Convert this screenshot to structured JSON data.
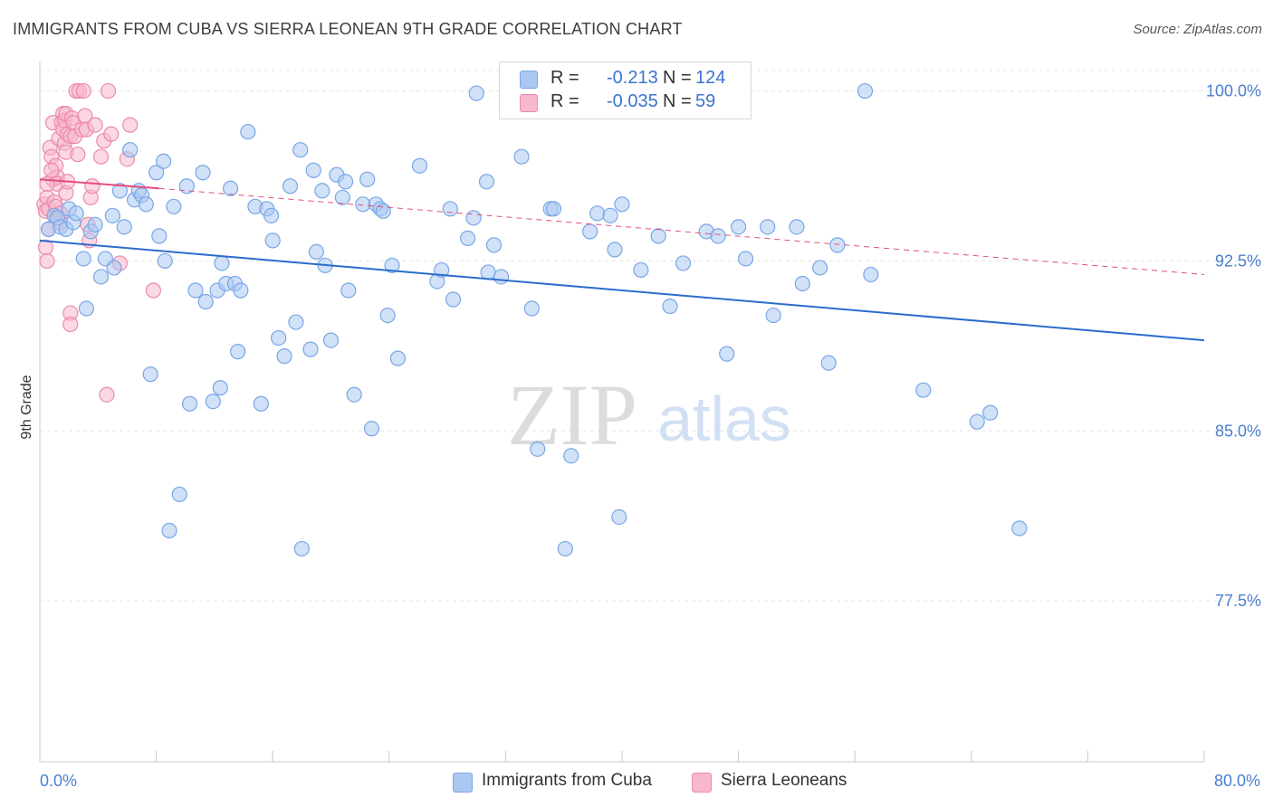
{
  "title": "IMMIGRANTS FROM CUBA VS SIERRA LEONEAN 9TH GRADE CORRELATION CHART",
  "source": "Source: ZipAtlas.com",
  "watermark": {
    "zip": "ZIP",
    "atlas": "atlas"
  },
  "colors": {
    "blue_fill": "#aac8f2",
    "blue_stroke": "#7aa6e4",
    "blue_line": "#2a6ccc",
    "pink_fill": "#f7b8cc",
    "pink_stroke": "#ec8aaa",
    "pink_line": "#e0507e",
    "tick_text": "#4a7fd0",
    "grid": "#e4e4e4"
  },
  "legend_top": {
    "rows": [
      {
        "r_label": "R =",
        "r_value": "-0.213",
        "n_label": "N =",
        "n_value": "124",
        "color": "#aac8f2"
      },
      {
        "r_label": "R =",
        "r_value": "-0.035",
        "n_label": "N =",
        "n_value": "59",
        "color": "#f7b8cc"
      }
    ]
  },
  "legend_bottom": [
    {
      "label": "Immigrants from Cuba",
      "color": "#aac8f2"
    },
    {
      "label": "Sierra Leoneans",
      "color": "#f7b8cc"
    }
  ],
  "chart_data": {
    "type": "scatter",
    "title": "IMMIGRANTS FROM CUBA VS SIERRA LEONEAN 9TH GRADE CORRELATION CHART",
    "xlabel": "",
    "ylabel": "9th Grade",
    "xlim": [
      0,
      80
    ],
    "ylim": [
      70.4,
      101.3
    ],
    "x_tick_labels": [
      "0.0%",
      "80.0%"
    ],
    "y_ticks": [
      {
        "value": 100.0,
        "label": "100.0%"
      },
      {
        "value": 92.5,
        "label": "92.5%"
      },
      {
        "value": 85.0,
        "label": "85.0%"
      },
      {
        "value": 77.5,
        "label": "77.5%"
      }
    ],
    "grid": true,
    "legend_placement": "bottom",
    "series": [
      {
        "name": "Immigrants from Cuba",
        "r": -0.213,
        "n": 124,
        "trend": {
          "x": [
            0,
            80
          ],
          "y": [
            93.4,
            89.0
          ]
        },
        "points": [
          [
            0.6,
            93.9
          ],
          [
            1.0,
            94.5
          ],
          [
            1.2,
            94.4
          ],
          [
            1.4,
            94.0
          ],
          [
            1.8,
            93.9
          ],
          [
            2.0,
            94.8
          ],
          [
            2.3,
            94.2
          ],
          [
            2.5,
            94.6
          ],
          [
            3.0,
            92.6
          ],
          [
            3.2,
            90.4
          ],
          [
            3.5,
            93.8
          ],
          [
            3.8,
            94.1
          ],
          [
            4.2,
            91.8
          ],
          [
            4.5,
            92.6
          ],
          [
            5.0,
            94.5
          ],
          [
            5.1,
            92.2
          ],
          [
            5.5,
            95.6
          ],
          [
            5.8,
            94.0
          ],
          [
            6.2,
            97.4
          ],
          [
            6.5,
            95.2
          ],
          [
            6.8,
            95.6
          ],
          [
            7.0,
            95.4
          ],
          [
            7.3,
            95.0
          ],
          [
            7.6,
            87.5
          ],
          [
            8.0,
            96.4
          ],
          [
            8.2,
            93.6
          ],
          [
            8.5,
            96.9
          ],
          [
            8.6,
            92.5
          ],
          [
            8.9,
            80.6
          ],
          [
            9.2,
            94.9
          ],
          [
            9.6,
            82.2
          ],
          [
            10.1,
            95.8
          ],
          [
            10.3,
            86.2
          ],
          [
            10.7,
            91.2
          ],
          [
            11.2,
            96.4
          ],
          [
            11.4,
            90.7
          ],
          [
            11.9,
            86.3
          ],
          [
            12.2,
            91.2
          ],
          [
            12.4,
            86.9
          ],
          [
            12.5,
            92.4
          ],
          [
            12.8,
            91.5
          ],
          [
            13.1,
            95.7
          ],
          [
            13.4,
            91.5
          ],
          [
            13.6,
            88.5
          ],
          [
            13.8,
            91.2
          ],
          [
            14.3,
            98.2
          ],
          [
            14.8,
            94.9
          ],
          [
            15.2,
            86.2
          ],
          [
            15.6,
            94.8
          ],
          [
            15.9,
            94.5
          ],
          [
            16.0,
            93.4
          ],
          [
            16.4,
            89.1
          ],
          [
            16.8,
            88.3
          ],
          [
            17.2,
            95.8
          ],
          [
            17.6,
            89.8
          ],
          [
            17.9,
            97.4
          ],
          [
            18.0,
            79.8
          ],
          [
            18.6,
            88.6
          ],
          [
            18.8,
            96.5
          ],
          [
            19.0,
            92.9
          ],
          [
            19.4,
            95.6
          ],
          [
            19.6,
            92.3
          ],
          [
            20.0,
            89.0
          ],
          [
            20.4,
            96.3
          ],
          [
            20.8,
            95.3
          ],
          [
            21.0,
            96.0
          ],
          [
            21.2,
            91.2
          ],
          [
            21.6,
            86.6
          ],
          [
            22.2,
            95.0
          ],
          [
            22.5,
            96.1
          ],
          [
            22.8,
            85.1
          ],
          [
            23.1,
            95.0
          ],
          [
            23.4,
            94.8
          ],
          [
            23.6,
            94.7
          ],
          [
            23.9,
            90.1
          ],
          [
            24.2,
            92.3
          ],
          [
            24.6,
            88.2
          ],
          [
            26.1,
            96.7
          ],
          [
            27.3,
            91.6
          ],
          [
            27.6,
            92.1
          ],
          [
            28.2,
            94.8
          ],
          [
            28.4,
            90.8
          ],
          [
            29.4,
            93.5
          ],
          [
            29.8,
            94.4
          ],
          [
            30.0,
            99.9
          ],
          [
            30.7,
            96.0
          ],
          [
            30.8,
            92.0
          ],
          [
            31.2,
            93.2
          ],
          [
            31.7,
            91.8
          ],
          [
            33.1,
            97.1
          ],
          [
            33.8,
            90.4
          ],
          [
            34.2,
            84.2
          ],
          [
            35.1,
            94.8
          ],
          [
            35.3,
            94.8
          ],
          [
            36.1,
            79.8
          ],
          [
            36.5,
            83.9
          ],
          [
            37.8,
            93.8
          ],
          [
            38.3,
            94.6
          ],
          [
            39.2,
            94.5
          ],
          [
            39.5,
            93.0
          ],
          [
            39.8,
            81.2
          ],
          [
            40.0,
            95.0
          ],
          [
            41.3,
            92.1
          ],
          [
            42.5,
            93.6
          ],
          [
            43.3,
            90.5
          ],
          [
            44.2,
            92.4
          ],
          [
            45.8,
            93.8
          ],
          [
            46.6,
            93.6
          ],
          [
            47.2,
            88.4
          ],
          [
            48.0,
            94.0
          ],
          [
            48.5,
            92.6
          ],
          [
            50.0,
            94.0
          ],
          [
            50.4,
            90.1
          ],
          [
            52.0,
            94.0
          ],
          [
            52.4,
            91.5
          ],
          [
            53.6,
            92.2
          ],
          [
            54.2,
            88.0
          ],
          [
            54.8,
            93.2
          ],
          [
            56.7,
            100.0
          ],
          [
            57.1,
            91.9
          ],
          [
            60.7,
            86.8
          ],
          [
            64.4,
            85.4
          ],
          [
            65.3,
            85.8
          ],
          [
            67.3,
            80.7
          ]
        ]
      },
      {
        "name": "Sierra Leoneans",
        "r": -0.035,
        "n": 59,
        "trend": {
          "x": [
            0,
            8.2
          ],
          "y": [
            96.1,
            95.7
          ]
        },
        "trend_dashed": {
          "x": [
            8.2,
            80
          ],
          "y": [
            95.7,
            91.9
          ]
        },
        "points": [
          [
            0.3,
            95.0
          ],
          [
            0.4,
            94.7
          ],
          [
            0.4,
            93.1
          ],
          [
            0.5,
            95.3
          ],
          [
            0.5,
            92.5
          ],
          [
            0.6,
            93.9
          ],
          [
            0.6,
            94.8
          ],
          [
            0.7,
            97.5
          ],
          [
            0.8,
            97.1
          ],
          [
            0.9,
            96.1
          ],
          [
            0.9,
            98.6
          ],
          [
            1.0,
            95.1
          ],
          [
            1.0,
            94.5
          ],
          [
            1.1,
            94.9
          ],
          [
            1.1,
            96.7
          ],
          [
            1.2,
            96.2
          ],
          [
            1.2,
            95.9
          ],
          [
            1.3,
            97.9
          ],
          [
            1.4,
            94.2
          ],
          [
            1.5,
            98.6
          ],
          [
            1.6,
            98.3
          ],
          [
            1.6,
            99.0
          ],
          [
            1.7,
            98.7
          ],
          [
            1.7,
            97.7
          ],
          [
            1.8,
            97.3
          ],
          [
            1.8,
            95.5
          ],
          [
            1.8,
            99.0
          ],
          [
            1.9,
            98.1
          ],
          [
            2.1,
            98.0
          ],
          [
            2.1,
            90.2
          ],
          [
            2.1,
            89.7
          ],
          [
            2.2,
            98.8
          ],
          [
            2.3,
            98.6
          ],
          [
            2.4,
            98.0
          ],
          [
            2.5,
            100.0
          ],
          [
            2.7,
            100.0
          ],
          [
            2.9,
            98.3
          ],
          [
            3.0,
            100.0
          ],
          [
            3.1,
            98.9
          ],
          [
            3.2,
            98.3
          ],
          [
            3.4,
            93.4
          ],
          [
            3.5,
            95.3
          ],
          [
            3.6,
            95.8
          ],
          [
            3.8,
            98.5
          ],
          [
            4.2,
            97.1
          ],
          [
            4.4,
            97.8
          ],
          [
            4.6,
            86.6
          ],
          [
            4.7,
            100.0
          ],
          [
            4.9,
            98.1
          ],
          [
            5.5,
            92.4
          ],
          [
            6.0,
            97.0
          ],
          [
            6.2,
            98.5
          ],
          [
            7.8,
            91.2
          ],
          [
            0.5,
            95.9
          ],
          [
            0.8,
            96.5
          ],
          [
            1.4,
            94.6
          ],
          [
            1.9,
            96.0
          ],
          [
            2.6,
            97.2
          ],
          [
            3.3,
            94.1
          ]
        ]
      }
    ]
  }
}
